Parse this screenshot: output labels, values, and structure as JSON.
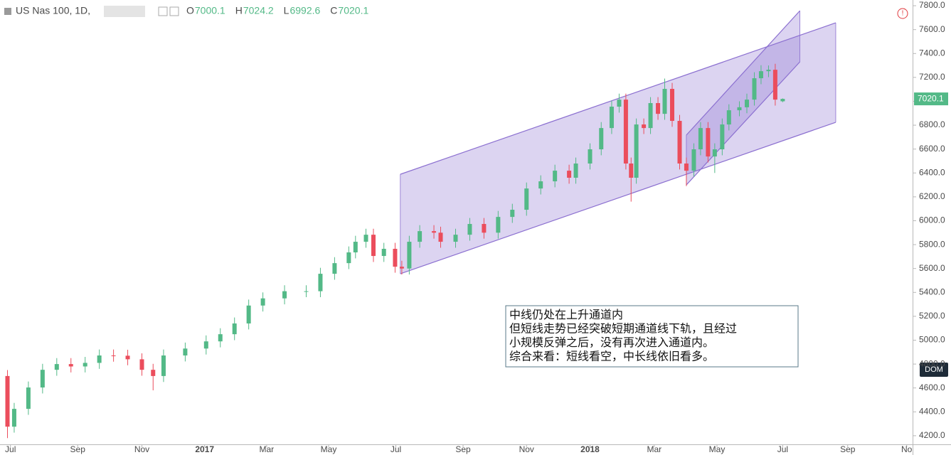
{
  "chart_data": {
    "type": "candlestick",
    "symbol": "US Nas 100, 1D,",
    "ohlc": [
      {
        "label": "O",
        "value": 7000.1
      },
      {
        "label": "H",
        "value": 7024.2
      },
      {
        "label": "L",
        "value": 6992.6
      },
      {
        "label": "C",
        "value": 7020.1
      }
    ],
    "up_color": "#53b987",
    "down_color": "#eb4d5c",
    "candles": {
      "x": [
        1.0,
        1.9,
        3.8,
        5.7,
        7.6,
        9.5,
        11.4,
        13.3,
        15.2,
        17.1,
        19.0,
        20.5,
        21.9,
        24.8,
        27.6,
        29.5,
        31.4,
        33.3,
        35.2,
        38.1,
        41.0,
        42.9,
        44.8,
        46.7,
        47.6,
        49.0,
        50.0,
        51.4,
        52.9,
        53.8,
        54.8,
        56.2,
        58.1,
        59.0,
        61.0,
        62.9,
        64.8,
        66.7,
        68.6,
        70.5,
        72.4,
        74.3,
        76.2,
        77.1,
        79.0,
        80.5,
        81.9,
        82.9,
        83.8,
        84.5,
        85.2,
        86.2,
        87.1,
        88.1,
        89.0,
        90.0,
        91.0,
        91.9,
        92.9,
        93.8,
        94.8,
        95.7,
        96.7,
        97.6,
        99.0,
        100.0,
        101.0,
        101.9,
        102.9,
        103.8,
        104.8
      ],
      "open": [
        4700,
        4276,
        4425,
        4604,
        4752,
        4800,
        4780,
        4810,
        4872,
        4870,
        4840,
        4752,
        4700,
        4872,
        4930,
        4990,
        5050,
        5140,
        5290,
        5350,
        5410,
        5410,
        5556,
        5645,
        5735,
        5824,
        5883,
        5705,
        5765,
        5615,
        5600,
        5824,
        5913,
        5900,
        5824,
        5883,
        5973,
        5900,
        6032,
        6092,
        6270,
        6330,
        6419,
        6360,
        6479,
        6598,
        6776,
        6955,
        7014,
        6479,
        6360,
        6806,
        6776,
        6985,
        6895,
        7104,
        6836,
        6479,
        6419,
        6598,
        6776,
        6538,
        6598,
        6806,
        6925,
        6950,
        7014,
        7193,
        7252,
        7264,
        7000.1
      ],
      "high": [
        4750,
        4475,
        4654,
        4802,
        4850,
        4850,
        4860,
        4922,
        4922,
        4920,
        4890,
        4802,
        4922,
        4980,
        5040,
        5100,
        5190,
        5340,
        5400,
        5460,
        5460,
        5606,
        5695,
        5785,
        5874,
        5933,
        5933,
        5815,
        5815,
        5665,
        5874,
        5963,
        5963,
        5950,
        5933,
        6023,
        6023,
        6082,
        6142,
        6320,
        6380,
        6469,
        6469,
        6529,
        6648,
        6826,
        7005,
        7064,
        7064,
        6529,
        6856,
        6856,
        7035,
        7035,
        7190,
        7154,
        6886,
        6529,
        6648,
        6826,
        6826,
        6648,
        6856,
        6975,
        7000,
        7064,
        7243,
        7302,
        7300,
        7314,
        7024.2
      ],
      "low": [
        4180,
        4226,
        4375,
        4554,
        4702,
        4730,
        4730,
        4760,
        4820,
        4790,
        4702,
        4580,
        4650,
        4822,
        4880,
        4940,
        5000,
        5090,
        5240,
        5300,
        5360,
        5360,
        5506,
        5595,
        5685,
        5774,
        5655,
        5655,
        5565,
        5550,
        5550,
        5774,
        5850,
        5774,
        5774,
        5833,
        5850,
        5850,
        5982,
        6042,
        6220,
        6280,
        6310,
        6310,
        6429,
        6548,
        6726,
        6905,
        6429,
        6160,
        6310,
        6726,
        6726,
        6845,
        6845,
        6786,
        6429,
        6290,
        6369,
        6548,
        6488,
        6400,
        6548,
        6756,
        6875,
        6900,
        6964,
        7143,
        7202,
        6964,
        6992.6
      ],
      "close": [
        4276,
        4425,
        4604,
        4752,
        4800,
        4780,
        4810,
        4872,
        4870,
        4840,
        4752,
        4700,
        4872,
        4930,
        4990,
        5050,
        5140,
        5290,
        5350,
        5410,
        5410,
        5556,
        5645,
        5735,
        5824,
        5883,
        5705,
        5765,
        5615,
        5600,
        5824,
        5913,
        5900,
        5824,
        5883,
        5973,
        5900,
        6032,
        6092,
        6270,
        6330,
        6419,
        6360,
        6479,
        6598,
        6776,
        6955,
        7014,
        6479,
        6360,
        6806,
        6776,
        6985,
        6895,
        7104,
        6836,
        6479,
        6419,
        6598,
        6776,
        6538,
        6598,
        6806,
        6925,
        6950,
        7014,
        7193,
        7252,
        7264,
        7014,
        7020.1
      ]
    },
    "channels": [
      {
        "x": [
          53.6,
          111.9
        ],
        "upper": [
          6389,
          7657
        ],
        "lower": [
          5556,
          6824
        ]
      },
      {
        "x": [
          91.9,
          107.1
        ],
        "upper": [
          6717,
          7758
        ],
        "lower": [
          6300,
          7330
        ]
      }
    ],
    "channel_color": "#8b6fd0",
    "xlim": [
      0,
      122
    ],
    "xticks": [
      {
        "value": 1.4,
        "label": "Jul"
      },
      {
        "value": 10.4,
        "label": "Sep"
      },
      {
        "value": 19.0,
        "label": "Nov"
      },
      {
        "value": 27.4,
        "label": "2017"
      },
      {
        "value": 35.7,
        "label": "Mar"
      },
      {
        "value": 44.0,
        "label": "May"
      },
      {
        "value": 53.0,
        "label": "Jul"
      },
      {
        "value": 62.0,
        "label": "Sep"
      },
      {
        "value": 70.5,
        "label": "Nov"
      },
      {
        "value": 79.0,
        "label": "2018"
      },
      {
        "value": 87.6,
        "label": "Mar"
      },
      {
        "value": 96.0,
        "label": "May"
      },
      {
        "value": 104.8,
        "label": "Jul"
      },
      {
        "value": 113.5,
        "label": "Sep"
      },
      {
        "value": 121.4,
        "label": "No"
      }
    ],
    "ylim": [
      4128,
      7848
    ],
    "yticks": [
      {
        "value": 4200,
        "label": "4200.0"
      },
      {
        "value": 4400,
        "label": "4400.0"
      },
      {
        "value": 4600,
        "label": "4600.0"
      },
      {
        "value": 4800,
        "label": "4800.0"
      },
      {
        "value": 5000,
        "label": "5000.0"
      },
      {
        "value": 5200,
        "label": "5200.0"
      },
      {
        "value": 5400,
        "label": "5400.0"
      },
      {
        "value": 5600,
        "label": "5600.0"
      },
      {
        "value": 5800,
        "label": "5800.0"
      },
      {
        "value": 6000,
        "label": "6000.0"
      },
      {
        "value": 6200,
        "label": "6200.0"
      },
      {
        "value": 6400,
        "label": "6400.0"
      },
      {
        "value": 6600,
        "label": "6600.0"
      },
      {
        "value": 6800,
        "label": "6800.0"
      },
      {
        "value": 7000,
        "label": "7000.0"
      },
      {
        "value": 7200,
        "label": "7200.0"
      },
      {
        "value": 7400,
        "label": "7400.0"
      },
      {
        "value": 7600,
        "label": "7600.0"
      },
      {
        "value": 7800,
        "label": "7800.0"
      }
    ],
    "annotation": [
      "中线仍处在上升通道内",
      "但短线走势已经突破短期通道线下轨，且经过",
      "小规模反弹之后，没有再次进入通道内。",
      "综合来看：短线看空，中长线依旧看多。"
    ],
    "dom_button": "DOM"
  }
}
